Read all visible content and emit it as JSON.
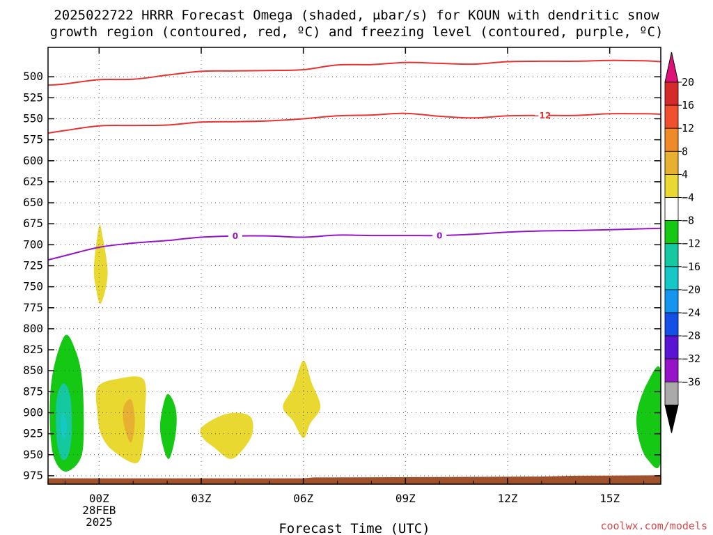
{
  "chart_data": {
    "type": "contour",
    "title_line1": "2025022722 HRRR Forecast Omega (shaded, μbar/s) for KOUN with dendritic snow",
    "title_line2": "growth region (contoured, red, ºC) and freezing level (contoured, purple, ºC)",
    "xlabel": "Forecast Time (UTC)",
    "credit": "coolwx.com/models",
    "x_range_hours": [
      -1.5,
      16.5
    ],
    "y_range_hpa": [
      465,
      985
    ],
    "y_ticks": [
      500,
      525,
      550,
      575,
      600,
      625,
      650,
      675,
      700,
      725,
      750,
      775,
      800,
      825,
      850,
      875,
      900,
      925,
      950,
      975
    ],
    "x_ticks": [
      {
        "hour": 0,
        "lines": [
          "00Z",
          "28FEB",
          "2025"
        ]
      },
      {
        "hour": 3,
        "lines": [
          "03Z"
        ]
      },
      {
        "hour": 6,
        "lines": [
          "06Z"
        ]
      },
      {
        "hour": 9,
        "lines": [
          "09Z"
        ]
      },
      {
        "hour": 12,
        "lines": [
          "12Z"
        ]
      },
      {
        "hour": 15,
        "lines": [
          "15Z"
        ]
      }
    ],
    "grid": true,
    "colorbar": {
      "labels": [
        "20",
        "16",
        "12",
        "8",
        "4",
        "−4",
        "−8",
        "−12",
        "−16",
        "−20",
        "−24",
        "−28",
        "−32",
        "−36"
      ],
      "colors": [
        "#d42a2a",
        "#f05030",
        "#f08a28",
        "#e8b030",
        "#e8d830",
        "#ffffff",
        "#14c814",
        "#14c8a0",
        "#14c8c8",
        "#1496f0",
        "#1450e8",
        "#5a14d4",
        "#9614c8",
        "#aaaaaa"
      ],
      "top_arrow_color": "#e0107a",
      "bottom_arrow_color": "#000000"
    },
    "contours": [
      {
        "name": "dendritic growth upper boundary",
        "color": "#e83232",
        "points": [
          [
            -1.5,
            510
          ],
          [
            -1,
            508.5
          ],
          [
            0,
            503.5
          ],
          [
            1,
            503
          ],
          [
            2,
            498
          ],
          [
            3,
            493.5
          ],
          [
            4,
            493
          ],
          [
            5,
            492.5
          ],
          [
            6,
            491.5
          ],
          [
            7,
            486
          ],
          [
            8,
            485.5
          ],
          [
            9,
            483
          ],
          [
            10,
            484
          ],
          [
            11,
            485
          ],
          [
            12,
            482
          ],
          [
            13,
            481.5
          ],
          [
            14,
            481.5
          ],
          [
            15,
            480.5
          ],
          [
            16,
            481
          ],
          [
            16.5,
            482
          ]
        ]
      },
      {
        "name": "dendritic growth lower boundary",
        "color": "#e83232",
        "label": "−12",
        "label_hour": 13,
        "points": [
          [
            -1.5,
            567
          ],
          [
            -1,
            564
          ],
          [
            0,
            558.5
          ],
          [
            1,
            558
          ],
          [
            2,
            557.5
          ],
          [
            3,
            554
          ],
          [
            4,
            553.5
          ],
          [
            5,
            552.5
          ],
          [
            6,
            550
          ],
          [
            7,
            546.5
          ],
          [
            8,
            545.5
          ],
          [
            9,
            543.5
          ],
          [
            10,
            547
          ],
          [
            11,
            549
          ],
          [
            12,
            546.5
          ],
          [
            13,
            546
          ],
          [
            14,
            546
          ],
          [
            15,
            544
          ],
          [
            16,
            544
          ],
          [
            16.5,
            544.5
          ]
        ]
      },
      {
        "name": "freezing level",
        "color": "#9614c8",
        "label": "0",
        "label_hours": [
          4,
          10
        ],
        "points": [
          [
            -1.5,
            718
          ],
          [
            -1,
            713
          ],
          [
            0,
            703
          ],
          [
            1,
            698
          ],
          [
            2,
            695
          ],
          [
            3,
            691
          ],
          [
            4,
            689.5
          ],
          [
            5,
            689.5
          ],
          [
            6,
            691
          ],
          [
            7,
            688.5
          ],
          [
            8,
            689
          ],
          [
            9,
            689
          ],
          [
            10,
            689
          ],
          [
            11,
            687.5
          ],
          [
            12,
            685
          ],
          [
            13,
            683.5
          ],
          [
            14,
            683
          ],
          [
            15,
            682
          ],
          [
            16,
            681
          ],
          [
            16.5,
            680.5
          ]
        ]
      }
    ],
    "omega_regions": [
      {
        "value": "4 to 8",
        "color": "#e8d830",
        "points": [
          [
            -0.15,
            725
          ],
          [
            0,
            678
          ],
          [
            0.1,
            690
          ],
          [
            0.25,
            735
          ],
          [
            0.05,
            770
          ],
          [
            -0.1,
            750
          ]
        ]
      },
      {
        "value": "-8 to -4",
        "color": "#14c814",
        "points": [
          [
            -1.0,
            808
          ],
          [
            -0.7,
            825
          ],
          [
            -0.5,
            860
          ],
          [
            -0.45,
            920
          ],
          [
            -0.55,
            955
          ],
          [
            -1.0,
            970
          ],
          [
            -1.35,
            950
          ],
          [
            -1.45,
            900
          ],
          [
            -1.35,
            850
          ]
        ]
      },
      {
        "value": "-12 to -8",
        "color": "#14c8a0",
        "points": [
          [
            -1.05,
            865
          ],
          [
            -0.85,
            880
          ],
          [
            -0.8,
            920
          ],
          [
            -0.9,
            950
          ],
          [
            -1.1,
            955
          ],
          [
            -1.25,
            930
          ],
          [
            -1.25,
            885
          ]
        ]
      },
      {
        "value": "-16 to -12",
        "color": "#14c8c8",
        "points": [
          [
            -1.05,
            900
          ],
          [
            -0.95,
            915
          ],
          [
            -1.0,
            930
          ],
          [
            -1.1,
            925
          ],
          [
            -1.12,
            910
          ]
        ]
      },
      {
        "value": "4 to 8",
        "color": "#e8d830",
        "points": [
          [
            -0.05,
            870
          ],
          [
            0.5,
            860
          ],
          [
            1.3,
            860
          ],
          [
            1.35,
            900
          ],
          [
            1.3,
            935
          ],
          [
            1.1,
            960
          ],
          [
            0.4,
            945
          ],
          [
            0.05,
            925
          ],
          [
            -0.05,
            900
          ]
        ]
      },
      {
        "value": "8 to 12",
        "color": "#e8b030",
        "points": [
          [
            0.75,
            890
          ],
          [
            0.95,
            885
          ],
          [
            1.05,
            910
          ],
          [
            0.95,
            935
          ],
          [
            0.8,
            925
          ],
          [
            0.7,
            905
          ]
        ]
      },
      {
        "value": "-8 to -4",
        "color": "#14c814",
        "points": [
          [
            1.8,
            910
          ],
          [
            2.0,
            878
          ],
          [
            2.25,
            895
          ],
          [
            2.25,
            925
          ],
          [
            2.05,
            955
          ],
          [
            1.85,
            935
          ]
        ]
      },
      {
        "value": "4 to 8",
        "color": "#e8d830",
        "points": [
          [
            3.0,
            918
          ],
          [
            3.5,
            905
          ],
          [
            4.0,
            900
          ],
          [
            4.45,
            905
          ],
          [
            4.5,
            925
          ],
          [
            4.2,
            945
          ],
          [
            3.85,
            955
          ],
          [
            3.4,
            942
          ],
          [
            3.05,
            930
          ]
        ]
      },
      {
        "value": "4 to 8",
        "color": "#e8d830",
        "points": [
          [
            5.4,
            893
          ],
          [
            5.7,
            870
          ],
          [
            6.0,
            838
          ],
          [
            6.25,
            865
          ],
          [
            6.5,
            893
          ],
          [
            6.2,
            913
          ],
          [
            6.0,
            930
          ],
          [
            5.7,
            910
          ]
        ]
      },
      {
        "value": "-8 to -4",
        "color": "#14c814",
        "points": [
          [
            16.5,
            850
          ],
          [
            16.1,
            865
          ],
          [
            15.8,
            900
          ],
          [
            15.85,
            930
          ],
          [
            16.1,
            955
          ],
          [
            16.5,
            958
          ]
        ]
      }
    ],
    "surface_fill": {
      "name": "below ground",
      "color": "#a0522d",
      "points": [
        [
          -1.5,
          978
        ],
        [
          6,
          978
        ],
        [
          6.3,
          977
        ],
        [
          10,
          976.5
        ],
        [
          13,
          976
        ],
        [
          14,
          975
        ],
        [
          16.5,
          974.5
        ]
      ]
    }
  }
}
